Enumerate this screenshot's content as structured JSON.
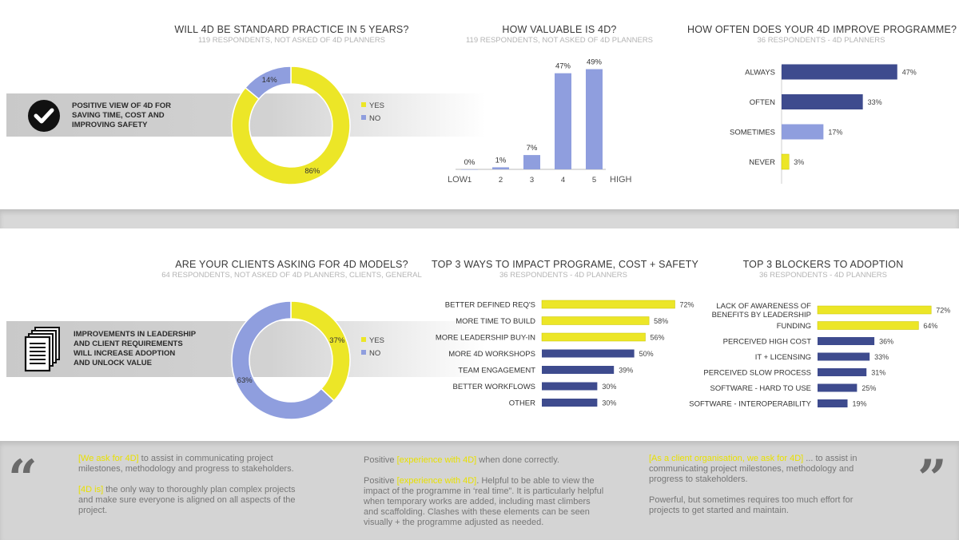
{
  "colors": {
    "yellow": "#ece627",
    "periwinkle": "#8f9ede",
    "navy": "#3e4b8e",
    "yellow_edge": "#c8c400"
  },
  "top_strip": {
    "text_lines": [
      "POSITIVE VIEW OF 4D FOR",
      "SAVING TIME, COST AND",
      "IMPROVING SAFETY"
    ],
    "icon": "check-circle-icon"
  },
  "mid_strip": {
    "text_lines": [
      "IMPROVEMENTS IN LEADERSHIP",
      "AND CLIENT REQUIREMENTS",
      "WILL INCREASE ADOPTION",
      "AND UNLOCK VALUE"
    ],
    "icon": "documents-icon"
  },
  "chart_data": [
    {
      "id": "standard-practice",
      "type": "pie",
      "title": "WILL 4D BE STANDARD PRACTICE IN 5 YEARS?",
      "subtitle": "119 RESPONDENTS, NOT ASKED OF 4D PLANNERS",
      "categories": [
        "YES",
        "NO"
      ],
      "values": [
        86,
        14
      ],
      "labels": [
        "86%",
        "14%"
      ],
      "legend": "right"
    },
    {
      "id": "how-valuable",
      "type": "bar",
      "title": "HOW VALUABLE IS 4D?",
      "subtitle": "119 RESPONDENTS, NOT ASKED OF 4D PLANNERS",
      "categories": [
        "1",
        "2",
        "3",
        "4",
        "5"
      ],
      "values": [
        0,
        1,
        7,
        47,
        49
      ],
      "labels": [
        "0%",
        "1%",
        "7%",
        "47%",
        "49%"
      ],
      "low_label": "LOW",
      "high_label": "HIGH",
      "ylim": [
        0,
        50
      ]
    },
    {
      "id": "improve-programme",
      "type": "bar",
      "orientation": "horizontal",
      "title": "HOW OFTEN DOES YOUR 4D IMPROVE PROGRAMME?",
      "subtitle": "36 RESPONDENTS - 4D PLANNERS",
      "categories": [
        "ALWAYS",
        "OFTEN",
        "SOMETIMES",
        "NEVER"
      ],
      "values": [
        47,
        33,
        17,
        3
      ],
      "labels": [
        "47%",
        "33%",
        "17%",
        "3%"
      ],
      "bar_colors": [
        "#3e4b8e",
        "#3e4b8e",
        "#8f9ede",
        "#ece627"
      ],
      "ylim": [
        0,
        50
      ]
    },
    {
      "id": "clients-asking",
      "type": "pie",
      "title": "ARE YOUR CLIENTS ASKING FOR 4D MODELS?",
      "subtitle": "64 RESPONDENTS, NOT ASKED OF 4D PLANNERS, CLIENTS, GENERAL",
      "categories": [
        "YES",
        "NO"
      ],
      "values": [
        37,
        63
      ],
      "labels": [
        "37%",
        "63%"
      ],
      "legend": "right"
    },
    {
      "id": "top3-ways",
      "type": "bar",
      "orientation": "horizontal",
      "title": "TOP 3 WAYS TO IMPACT PROGRAME, COST + SAFETY",
      "subtitle": "36 RESPONDENTS - 4D PLANNERS",
      "categories": [
        "BETTER DEFINED REQ'S",
        "MORE TIME TO BUILD",
        "MORE LEADERSHIP BUY-IN",
        "MORE 4D WORKSHOPS",
        "TEAM ENGAGEMENT",
        "BETTER WORKFLOWS",
        "OTHER"
      ],
      "values": [
        72,
        58,
        56,
        50,
        39,
        30,
        30
      ],
      "labels": [
        "72%",
        "58%",
        "56%",
        "50%",
        "39%",
        "30%",
        "30%"
      ],
      "bar_colors": [
        "#ece627",
        "#ece627",
        "#ece627",
        "#3e4b8e",
        "#3e4b8e",
        "#3e4b8e",
        "#3e4b8e"
      ],
      "ylim": [
        0,
        80
      ]
    },
    {
      "id": "top3-blockers",
      "type": "bar",
      "orientation": "horizontal",
      "title": "TOP 3 BLOCKERS TO ADOPTION",
      "subtitle": "36 RESPONDENTS - 4D PLANNERS",
      "categories": [
        "LACK OF AWARENESS OF|BENEFITS BY LEADERSHIP",
        "FUNDING",
        "PERCEIVED HIGH COST",
        "IT + LICENSING",
        "PERCEIVED SLOW PROCESS",
        "SOFTWARE - HARD TO USE",
        "SOFTWARE - INTEROPERABILITY"
      ],
      "values": [
        72,
        64,
        36,
        33,
        31,
        25,
        19
      ],
      "labels": [
        "72%",
        "64%",
        "36%",
        "33%",
        "31%",
        "25%",
        "19%"
      ],
      "bar_colors": [
        "#ece627",
        "#ece627",
        "#3e4b8e",
        "#3e4b8e",
        "#3e4b8e",
        "#3e4b8e",
        "#3e4b8e"
      ],
      "ylim": [
        0,
        80
      ]
    }
  ],
  "quotes": {
    "open_mark": "“",
    "close_mark": "”",
    "col1": [
      [
        [
          "hl",
          "[We ask for 4D]"
        ],
        [
          "",
          " to assist in communicating project milestones, methodology and progress to stakeholders."
        ]
      ],
      [
        [
          "hl",
          "[4D is]"
        ],
        [
          "",
          " the only way to thoroughly plan complex projects and make sure everyone is aligned on all aspects of the project."
        ]
      ]
    ],
    "col2": [
      [
        [
          "",
          "Positive "
        ],
        [
          "hl",
          "[experience with 4D]"
        ],
        [
          "",
          " when done correctly."
        ]
      ],
      [
        [
          "",
          "Positive "
        ],
        [
          "hl",
          "[experience with 4D]"
        ],
        [
          "",
          ". Helpful to be able to view the impact of the programme in ‘real time”. It is particularly helpful when temporary works are added, including mast climbers and scaffolding. Clashes with these elements can be seen visually + the programme adjusted as needed."
        ]
      ]
    ],
    "col3": [
      [
        [
          "hl",
          "[As a client organisation, we ask for 4D]"
        ],
        [
          "",
          " ... to assist in communicating project milestones, methodology and progress to stakeholders."
        ]
      ],
      [
        [
          "",
          "Powerful, but sometimes requires too much effort for projects to get started and maintain."
        ]
      ]
    ]
  }
}
